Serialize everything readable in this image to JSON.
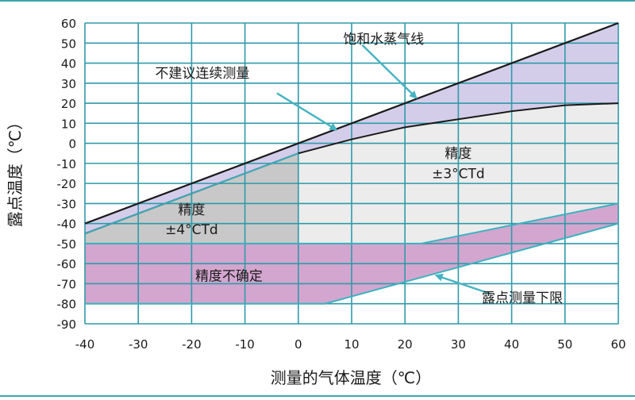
{
  "chart_data": {
    "type": "area",
    "xlabel": "测量的气体温度（℃）",
    "ylabel": "露点温度（℃）",
    "xlim": [
      -40,
      60
    ],
    "ylim": [
      -90,
      60
    ],
    "x_ticks": [
      -40,
      -30,
      -20,
      -10,
      0,
      10,
      20,
      30,
      40,
      50,
      60
    ],
    "y_ticks": [
      -90,
      -80,
      -70,
      -60,
      -50,
      -40,
      -30,
      -20,
      -10,
      0,
      10,
      20,
      30,
      40,
      50,
      60
    ],
    "grid": true,
    "series": [
      {
        "name": "饱和水蒸气线",
        "x": [
          -40,
          60
        ],
        "y": [
          -40,
          60
        ]
      },
      {
        "x": [
          -40,
          -30,
          -20,
          -10,
          0,
          10,
          20,
          30,
          40,
          50,
          60
        ],
        "y": [
          -45,
          -35,
          -25,
          -15,
          -5,
          2,
          8,
          12,
          16,
          19,
          20
        ]
      },
      {
        "name": "露点测量下限",
        "x": [
          -40,
          5,
          60
        ],
        "y": [
          -80,
          -80,
          -40
        ]
      },
      {
        "x": [
          -40,
          23,
          60
        ],
        "y": [
          -50,
          -50,
          -30
        ]
      }
    ],
    "annotations": [
      {
        "text": "饱和水蒸气线",
        "x": 16,
        "y": 52
      },
      {
        "text": "不建议连续测量",
        "x": -18,
        "y": 35
      },
      {
        "text": "精度",
        "x": 30,
        "y": -5
      },
      {
        "text": "±3°CTd",
        "x": 30,
        "y": -15
      },
      {
        "text": "精度",
        "x": -20,
        "y": -33
      },
      {
        "text": "±4°CTd",
        "x": -20,
        "y": -43
      },
      {
        "text": "精度不确定",
        "x": -13,
        "y": -66
      },
      {
        "text": "露点测量下限",
        "x": 42,
        "y": -77
      }
    ],
    "colors": {
      "grid": "#2f9aa8",
      "lavender": "#d4cdea",
      "light_gray": "#ececec",
      "dark_gray": "#c8c8c8",
      "magenta": "#d3a6cf",
      "line_black": "#1a1a1a",
      "line_teal": "#3ab2c0",
      "arrow": "#46b3c2"
    }
  }
}
